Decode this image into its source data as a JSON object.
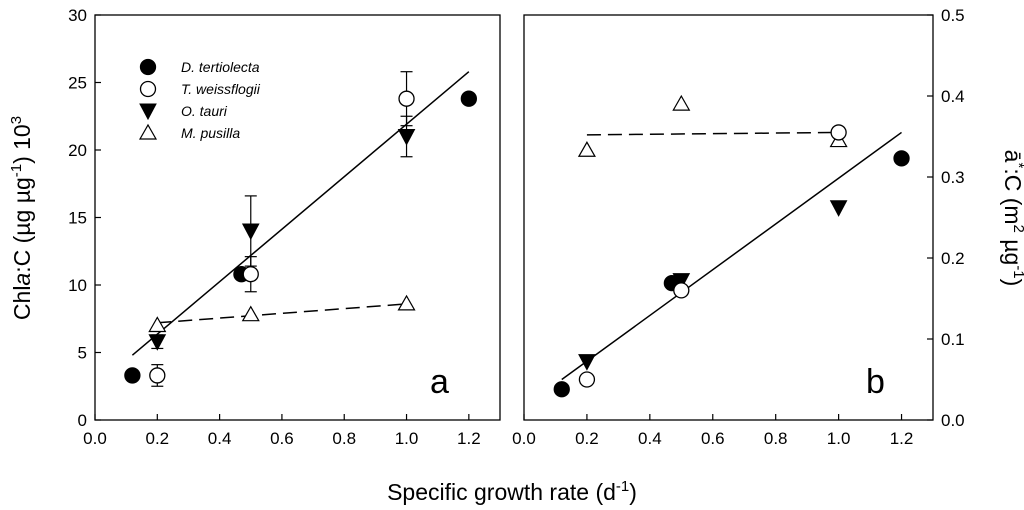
{
  "chart_data": [
    {
      "type": "scatter",
      "panel": "a",
      "panel_label": "a",
      "xlabel": "Specific growth rate (d-1)",
      "ylabel": "Chla:C (µg µg-1) 103",
      "xlim": [
        0.0,
        1.3
      ],
      "ylim": [
        0,
        30
      ],
      "xticks": [
        "0.0",
        "0.2",
        "0.4",
        "0.6",
        "0.8",
        "1.0",
        "1.2"
      ],
      "yticks": [
        "0",
        "5",
        "10",
        "15",
        "20",
        "25",
        "30"
      ],
      "legend_position": "top-left",
      "series": [
        {
          "name": "D. tertiolecta",
          "marker": "filled-circle",
          "x": [
            0.12,
            0.47,
            1.2
          ],
          "y": [
            3.3,
            10.8,
            23.8
          ],
          "err": [
            0,
            0,
            0
          ]
        },
        {
          "name": "T. weissflogii",
          "marker": "open-circle",
          "x": [
            0.2,
            0.5,
            1.0
          ],
          "y": [
            3.3,
            10.8,
            23.8
          ],
          "err": [
            0.8,
            1.3,
            2.0
          ]
        },
        {
          "name": "O. tauri",
          "marker": "filled-triangle-down",
          "x": [
            0.2,
            0.5,
            1.0
          ],
          "y": [
            5.8,
            14.0,
            21.0
          ],
          "err": [
            0.5,
            2.6,
            1.5
          ]
        },
        {
          "name": "M. pusilla",
          "marker": "open-triangle-up",
          "x": [
            0.2,
            0.5,
            1.0
          ],
          "y": [
            7.0,
            7.8,
            8.6
          ],
          "err": [
            0,
            0,
            0
          ]
        }
      ],
      "fit_lines": [
        {
          "style": "solid",
          "x": [
            0.12,
            1.2
          ],
          "y": [
            4.8,
            25.8
          ]
        },
        {
          "style": "dashed",
          "x": [
            0.2,
            1.0
          ],
          "y": [
            7.2,
            8.6
          ]
        }
      ]
    },
    {
      "type": "scatter",
      "panel": "b",
      "panel_label": "b",
      "xlabel": "Specific growth rate (d-1)",
      "ylabel": "ā*:C (m2 µg-1)",
      "xlim": [
        0.0,
        1.3
      ],
      "ylim": [
        0.0,
        0.5
      ],
      "xticks": [
        "0.0",
        "0.2",
        "0.4",
        "0.6",
        "0.8",
        "1.0",
        "1.2"
      ],
      "yticks": [
        "0.0",
        "0.1",
        "0.2",
        "0.3",
        "0.4",
        "0.5"
      ],
      "series": [
        {
          "name": "D. tertiolecta",
          "marker": "filled-circle",
          "x": [
            0.12,
            0.47,
            1.2
          ],
          "y": [
            0.038,
            0.169,
            0.323
          ],
          "err": [
            0,
            0,
            0
          ]
        },
        {
          "name": "T. weissflogii",
          "marker": "open-circle",
          "x": [
            0.2,
            0.5,
            1.0
          ],
          "y": [
            0.05,
            0.16,
            0.355
          ],
          "err": [
            0,
            0,
            0
          ]
        },
        {
          "name": "O. tauri",
          "marker": "filled-triangle-down",
          "x": [
            0.2,
            0.5,
            1.0
          ],
          "y": [
            0.072,
            0.172,
            0.262
          ],
          "err": [
            0,
            0,
            0
          ]
        },
        {
          "name": "M. pusilla",
          "marker": "open-triangle-up",
          "x": [
            0.2,
            0.5,
            1.0
          ],
          "y": [
            0.333,
            0.39,
            0.345
          ],
          "err": [
            0,
            0,
            0
          ]
        }
      ],
      "fit_lines": [
        {
          "style": "solid",
          "x": [
            0.12,
            1.2
          ],
          "y": [
            0.05,
            0.355
          ]
        },
        {
          "style": "dashed",
          "x": [
            0.2,
            1.0
          ],
          "y": [
            0.352,
            0.355
          ]
        }
      ]
    }
  ],
  "xlabel_shared": {
    "main": "Specific growth rate (d",
    "sup": "-1",
    "close": ")"
  },
  "ylabel_left": {
    "p1": "Chl",
    "italic": "a",
    "p2": ":C (µg µg",
    "sup1": "-1",
    "p3": ") 10",
    "sup2": "3"
  },
  "ylabel_right": {
    "base": "ā",
    "sup0": "*",
    "p1": ":C (m",
    "sup1": "2",
    "p2": " µg",
    "sup2": "-1",
    "p3": ")"
  }
}
